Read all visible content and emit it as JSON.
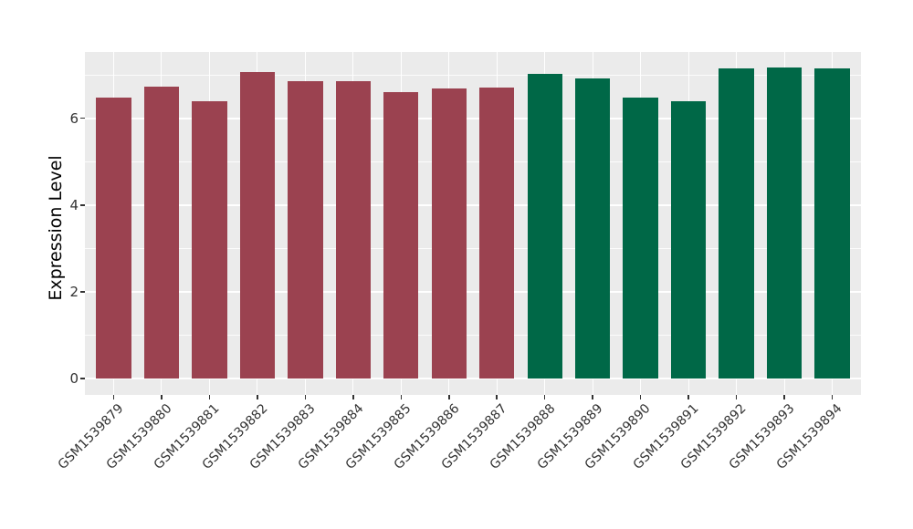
{
  "figure": {
    "background": "#ffffff",
    "panel_background": "#EBEBEB",
    "grid_major_color": "#ffffff",
    "grid_minor_color": "#ffffff",
    "tick_color": "#333333",
    "axis_text_color": "#333333",
    "axis_title_color": "#000000"
  },
  "chart_data": {
    "type": "bar",
    "title": "",
    "xlabel": "",
    "ylabel": "Expression Level",
    "legend": "none",
    "grid": true,
    "categories": [
      "GSM1539879",
      "GSM1539880",
      "GSM1539881",
      "GSM1539882",
      "GSM1539883",
      "GSM1539884",
      "GSM1539885",
      "GSM1539886",
      "GSM1539887",
      "GSM1539888",
      "GSM1539889",
      "GSM1539890",
      "GSM1539891",
      "GSM1539892",
      "GSM1539893",
      "GSM1539894"
    ],
    "values": [
      6.47,
      6.74,
      6.4,
      7.07,
      6.85,
      6.85,
      6.61,
      6.68,
      6.71,
      7.03,
      6.92,
      6.48,
      6.39,
      7.16,
      7.17,
      7.15
    ],
    "bar_colors": [
      "#9B4250",
      "#9B4250",
      "#9B4250",
      "#9B4250",
      "#9B4250",
      "#9B4250",
      "#9B4250",
      "#9B4250",
      "#9B4250",
      "#006847",
      "#006847",
      "#006847",
      "#006847",
      "#006847",
      "#006847",
      "#006847"
    ],
    "color_groups": [
      {
        "color": "#9B4250",
        "first": "GSM1539879",
        "last": "GSM1539887"
      },
      {
        "color": "#006847",
        "first": "GSM1539888",
        "last": "GSM1539894"
      }
    ],
    "yticks": [
      0,
      2,
      4,
      6
    ],
    "yticks_minor": [
      1,
      3,
      5,
      7
    ],
    "ylim": [
      -0.38,
      7.53
    ],
    "x_label_angle": 45
  }
}
